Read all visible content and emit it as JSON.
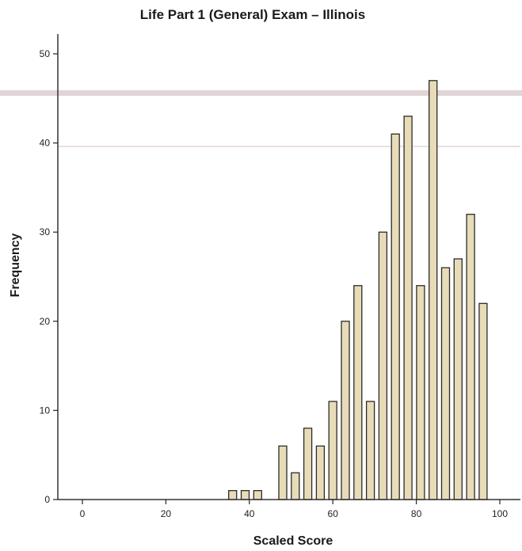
{
  "chart_data": {
    "type": "bar",
    "title": "Life Part 1 (General) Exam – Illinois",
    "xlabel": "Scaled Score",
    "ylabel": "Frequency",
    "xlim": [
      -5,
      102
    ],
    "ylim": [
      0,
      52
    ],
    "x_ticks": [
      0,
      20,
      40,
      60,
      80,
      100
    ],
    "y_ticks": [
      0,
      10,
      20,
      30,
      40,
      50
    ],
    "bin_width": 3,
    "bins": [
      {
        "x": 36,
        "count": 1
      },
      {
        "x": 39,
        "count": 1
      },
      {
        "x": 42,
        "count": 1
      },
      {
        "x": 48,
        "count": 6
      },
      {
        "x": 51,
        "count": 3
      },
      {
        "x": 54,
        "count": 8
      },
      {
        "x": 57,
        "count": 6
      },
      {
        "x": 60,
        "count": 11
      },
      {
        "x": 63,
        "count": 20
      },
      {
        "x": 66,
        "count": 24
      },
      {
        "x": 69,
        "count": 11
      },
      {
        "x": 72,
        "count": 30
      },
      {
        "x": 75,
        "count": 41
      },
      {
        "x": 78,
        "count": 43
      },
      {
        "x": 81,
        "count": 24
      },
      {
        "x": 84,
        "count": 47
      },
      {
        "x": 87,
        "count": 26
      },
      {
        "x": 90,
        "count": 27
      },
      {
        "x": 93,
        "count": 32
      },
      {
        "x": 96,
        "count": 22
      }
    ],
    "grid": false,
    "colors": {
      "bar_fill": "#e8dcb8",
      "bar_stroke": "#2a2a2a",
      "axis": "#333333"
    }
  }
}
